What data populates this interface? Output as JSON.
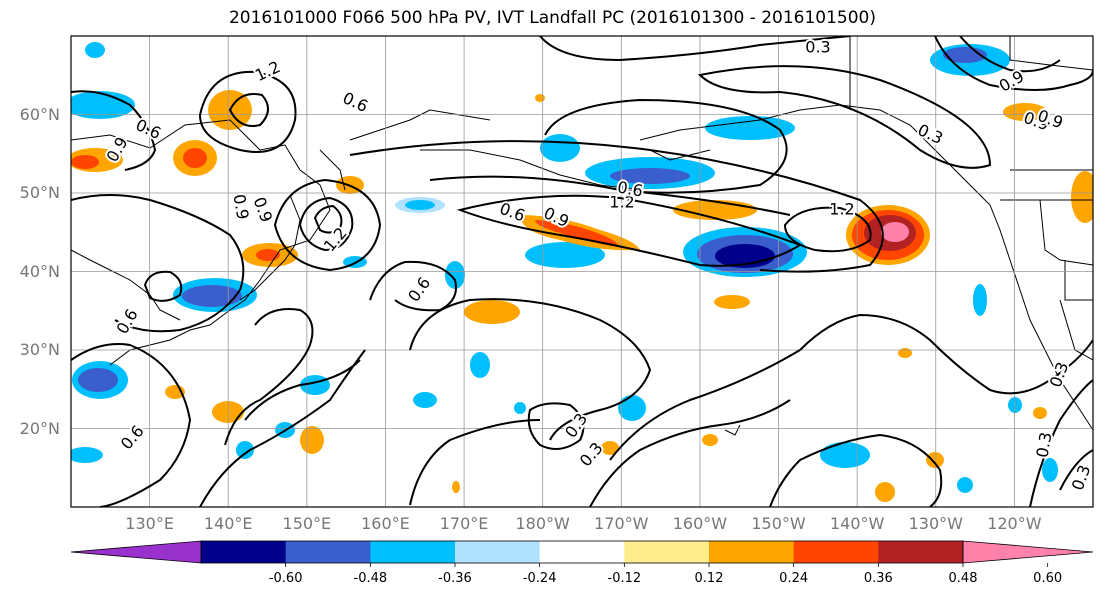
{
  "title": "2016101000 F066 500 hPa PV, IVT Landfall PC (2016101300 - 2016101500)",
  "axes": {
    "lat_ticks": [
      {
        "value": 20,
        "label": "20°N"
      },
      {
        "value": 30,
        "label": "30°N"
      },
      {
        "value": 40,
        "label": "40°N"
      },
      {
        "value": 50,
        "label": "50°N"
      },
      {
        "value": 60,
        "label": "60°N"
      }
    ],
    "lon_ticks": [
      {
        "value": 130,
        "label": "130°E"
      },
      {
        "value": 140,
        "label": "140°E"
      },
      {
        "value": 150,
        "label": "150°E"
      },
      {
        "value": 160,
        "label": "160°E"
      },
      {
        "value": 170,
        "label": "170°E"
      },
      {
        "value": 180,
        "label": "180°W"
      },
      {
        "value": 190,
        "label": "170°W"
      },
      {
        "value": 200,
        "label": "160°W"
      },
      {
        "value": 210,
        "label": "150°W"
      },
      {
        "value": 220,
        "label": "140°W"
      },
      {
        "value": 230,
        "label": "130°W"
      },
      {
        "value": 240,
        "label": "120°W"
      }
    ],
    "lon_range": [
      120,
      250
    ],
    "lat_range": [
      10,
      70
    ]
  },
  "colorbar": {
    "colors": [
      "#9932cc",
      "#00008b",
      "#3a5fcd",
      "#00bfff",
      "#b0e2ff",
      "#ffffff",
      "#ffec8b",
      "#ffa500",
      "#ff4500",
      "#b22222",
      "#ff82ab"
    ],
    "tick_labels": [
      "-0.60",
      "-0.48",
      "-0.36",
      "-0.24",
      "-0.12",
      "0.12",
      "0.24",
      "0.36",
      "0.48",
      "0.60"
    ]
  },
  "contour_labels": [
    "1.2",
    "0.6",
    "0.6",
    "0.9",
    "0.9",
    "1.2",
    "0.6",
    "0.6",
    "0.9",
    "1.2",
    "1.2",
    "0.3",
    "0.3",
    "0.6",
    "0.9",
    "0.3",
    "0.9",
    "0.6",
    "0.3",
    "0.3",
    "0.3",
    "0.3",
    "0.9",
    "0.6",
    "0.9"
  ]
}
